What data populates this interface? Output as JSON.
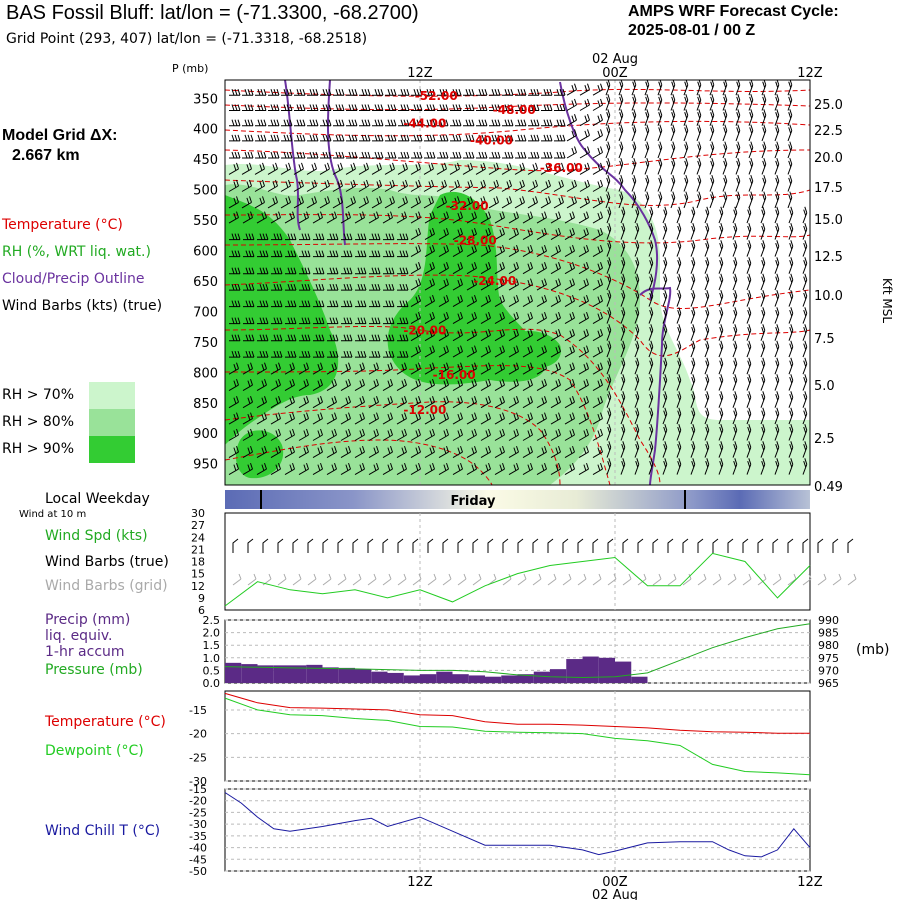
{
  "header": {
    "title": "BAS Fossil Bluff:  lat/lon = (-71.3300, -68.2700)",
    "subtitle": "Grid Point (293, 407) lat/lon = (-71.3318, -68.2518)",
    "cycle_line1": "AMPS WRF Forecast Cycle:",
    "cycle_line2": "2025-08-01 / 00  Z"
  },
  "model_grid": {
    "line1": "Model Grid ΔX:",
    "line2": "2.667 km"
  },
  "colors": {
    "temperature": "#dd0000",
    "rh": "#33cc33",
    "cloud": "#6a329f",
    "dewpoint": "#22cc22",
    "pressure": "#22aa22",
    "windchill": "#1a1aa0",
    "precip": "#5b2a86",
    "rh70": "#ccf5cc",
    "rh80": "#99e299",
    "rh90": "#33cc33",
    "gridbarb": "#aaaaaa"
  },
  "legend_main": {
    "temperature": "Temperature (°C)",
    "rh": "RH (%, WRT liq. wat.)",
    "cloud": "Cloud/Precip Outline",
    "wind": "Wind Barbs (kts) (true)",
    "rh70": "RH > 70%",
    "rh80": "RH > 80%",
    "rh90": "RH > 90%"
  },
  "time_axis": {
    "top_labels": [
      "12Z",
      "00Z",
      "12Z"
    ],
    "date_label": "02 Aug",
    "bottom_labels": [
      "12Z",
      "00Z",
      "12Z"
    ]
  },
  "weekday": {
    "label": "Local Weekday",
    "day": "Friday"
  },
  "wind_panel": {
    "subtitle": "Wind at 10 m",
    "spd_label": "Wind Spd (kts)",
    "barb_true_label": "Wind Barbs (true)",
    "barb_grid_label": "Wind Barbs (grid)"
  },
  "precip_panel": {
    "precip_label_1": "Precip (mm)",
    "precip_label_2": "liq. equiv.",
    "precip_label_3": "1-hr accum",
    "pressure_label": "Pressure (mb)",
    "unit_right": "(mb)"
  },
  "temp_panel": {
    "temp_label": "Temperature (°C)",
    "dew_label": "Dewpoint (°C)"
  },
  "windchill_panel": {
    "label": "Wind Chill T (°C)"
  },
  "chart_data": [
    {
      "type": "heatmap",
      "ylabel": "P (mb)",
      "y2label": "Kft MSL",
      "pressure_ticks": [
        "350",
        "400",
        "450",
        "500",
        "550",
        "600",
        "650",
        "700",
        "750",
        "800",
        "850",
        "900",
        "950"
      ],
      "height_ticks": [
        "25.0",
        "22.5",
        "20.0",
        "17.5",
        "15.0",
        "12.5",
        "10.0",
        "7.5",
        "5.0",
        "2.5",
        "0.49"
      ],
      "x_range_hours": [
        0,
        36
      ],
      "y_range_mb": [
        320,
        985
      ],
      "temperature_labels": [
        {
          "label": "-52.00",
          "t": 13.0,
          "p": 345
        },
        {
          "label": "-48.00",
          "t": 17.8,
          "p": 368
        },
        {
          "label": "-44.00",
          "t": 12.3,
          "p": 390
        },
        {
          "label": "-40.00",
          "t": 16.4,
          "p": 418
        },
        {
          "label": "-36.00",
          "t": 20.7,
          "p": 463
        },
        {
          "label": "-32.00",
          "t": 14.9,
          "p": 525
        },
        {
          "label": "-28.00",
          "t": 15.4,
          "p": 582
        },
        {
          "label": "-24.00",
          "t": 16.6,
          "p": 648
        },
        {
          "label": "-20.00",
          "t": 12.3,
          "p": 730
        },
        {
          "label": "-16.00",
          "t": 14.1,
          "p": 803
        },
        {
          "label": "-12.00",
          "t": 12.3,
          "p": 860
        }
      ]
    },
    {
      "type": "line",
      "title": "Wind Spd (kts)",
      "yticks": [
        "30",
        "27",
        "24",
        "21",
        "18",
        "15",
        "12",
        "9",
        "6"
      ],
      "ylim": [
        6,
        30
      ],
      "x_hours": [
        0,
        2,
        4,
        6,
        8,
        10,
        12,
        14,
        16,
        18,
        20,
        22,
        24,
        26,
        28,
        30,
        32,
        34,
        36
      ],
      "values": [
        7,
        13,
        11,
        10,
        11,
        9,
        11,
        8,
        12,
        15,
        17,
        18,
        19,
        12,
        12,
        20,
        18,
        9,
        17
      ]
    },
    {
      "type": "bar",
      "yticks": [
        "2.5",
        "2.0",
        "1.5",
        "1.0",
        "0.5",
        "0.0"
      ],
      "y2ticks": [
        "990",
        "985",
        "980",
        "975",
        "970",
        "965"
      ],
      "ylim": [
        0,
        2.5
      ],
      "y2lim": [
        965,
        990
      ],
      "precip_hours": [
        1,
        2,
        3,
        4,
        5,
        6,
        7,
        8,
        9,
        10,
        11,
        12,
        13,
        14,
        15,
        16,
        17,
        18,
        19,
        20,
        21,
        22,
        23,
        24,
        25,
        26
      ],
      "precip_values": [
        0.8,
        0.75,
        0.7,
        0.7,
        0.7,
        0.72,
        0.62,
        0.6,
        0.55,
        0.45,
        0.4,
        0.3,
        0.35,
        0.45,
        0.35,
        0.3,
        0.25,
        0.3,
        0.35,
        0.45,
        0.55,
        0.95,
        1.05,
        1.0,
        0.85,
        0.25
      ],
      "pressure_hours": [
        0,
        4,
        8,
        12,
        14,
        16,
        18,
        20,
        22,
        24,
        26,
        28,
        30,
        32,
        34,
        36
      ],
      "pressure_values": [
        971.5,
        971,
        970.6,
        970,
        970,
        969.5,
        968.2,
        967.5,
        967.2,
        967.5,
        969,
        974,
        979,
        983,
        986.5,
        988.5
      ]
    },
    {
      "type": "line",
      "yticks": [
        "-15",
        "-20",
        "-25",
        "-30"
      ],
      "ylim": [
        -30,
        -11
      ],
      "x_hours": [
        0,
        2,
        4,
        6,
        8,
        10,
        12,
        14,
        16,
        18,
        20,
        22,
        24,
        26,
        28,
        30,
        32,
        34,
        36
      ],
      "series": [
        {
          "name": "Temperature (°C)",
          "values": [
            -11.5,
            -13.5,
            -14.5,
            -14.6,
            -14.8,
            -15,
            -16,
            -16.2,
            -17.5,
            -18,
            -18,
            -18.2,
            -18.5,
            -18.8,
            -19.3,
            -19.6,
            -19.7,
            -19.9,
            -19.9
          ]
        },
        {
          "name": "Dewpoint (°C)",
          "values": [
            -12.5,
            -15,
            -16,
            -16.2,
            -16.8,
            -17.2,
            -18.5,
            -18.6,
            -19.5,
            -19.7,
            -19.8,
            -20,
            -21,
            -21.5,
            -22.5,
            -26.5,
            -28,
            -28.3,
            -28.7
          ]
        }
      ]
    },
    {
      "type": "line",
      "yticks": [
        "-15",
        "-20",
        "-25",
        "-30",
        "-35",
        "-40",
        "-45",
        "-50"
      ],
      "ylim": [
        -50,
        -15
      ],
      "x_hours": [
        0,
        1,
        2,
        3,
        4,
        6,
        8,
        9,
        10,
        12,
        14,
        16,
        18,
        20,
        22,
        23,
        24,
        26,
        28,
        30,
        31,
        32,
        33,
        34,
        35,
        36
      ],
      "values": [
        -16.5,
        -21,
        -27,
        -32,
        -33,
        -31,
        -28.5,
        -27.5,
        -31,
        -27,
        -33,
        -39,
        -39,
        -39,
        -41,
        -43,
        -41.5,
        -38,
        -37.5,
        -37.5,
        -41,
        -43.5,
        -44,
        -41,
        -32,
        -40
      ]
    }
  ]
}
